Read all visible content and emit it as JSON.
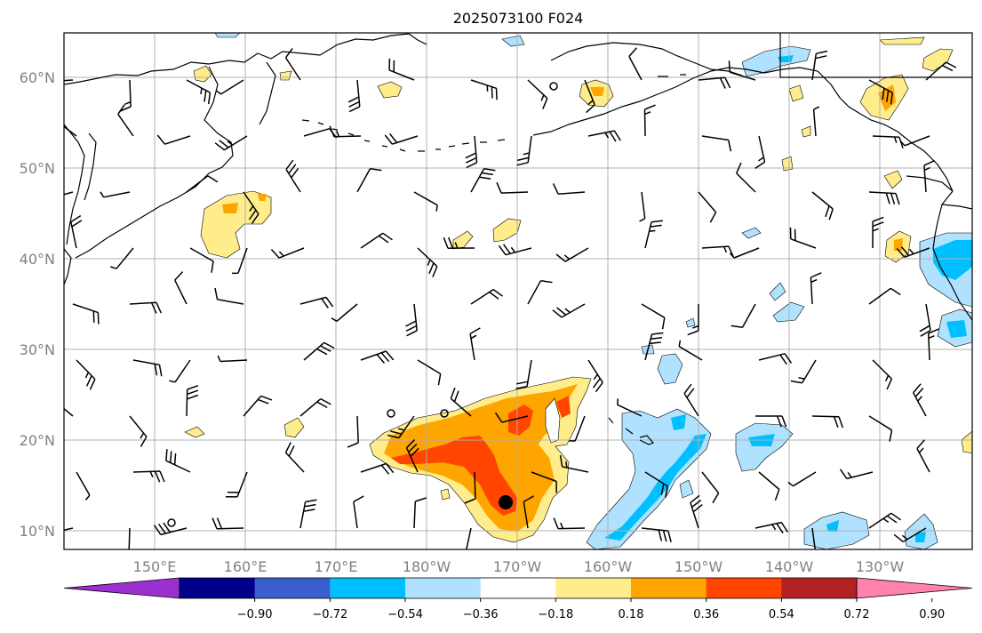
{
  "title": "2025073100 F024",
  "lat_labels": [
    "60°N",
    "50°N",
    "40°N",
    "30°N",
    "20°N",
    "10°N"
  ],
  "lon_labels": [
    "150°E",
    "160°E",
    "170°E",
    "180°W",
    "170°W",
    "160°W",
    "150°W",
    "140°W",
    "130°W"
  ],
  "colorbar": {
    "colors": [
      "#9b30d0",
      "#00008b",
      "#3a5fcd",
      "#00bfff",
      "#b0e2ff",
      "#ffffff",
      "#ffec8b",
      "#ffa500",
      "#ff4500",
      "#b22222",
      "#ff82ab"
    ],
    "labels": [
      "−0.90",
      "−0.72",
      "−0.54",
      "−0.36",
      "−0.18",
      "0.18",
      "0.36",
      "0.54",
      "0.72",
      "0.90"
    ]
  },
  "palette": {
    "yellow": "#ffec8b",
    "orange": "#ffa500",
    "red": "#ff4500",
    "lightblue": "#b0e2ff",
    "blue": "#00bfff"
  }
}
